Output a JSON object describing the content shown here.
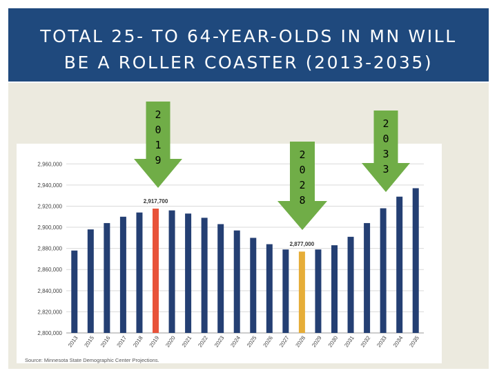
{
  "header": {
    "title_line1": "TOTAL 25- TO 64-YEAR-OLDS IN MN WILL",
    "title_line2": "BE A ROLLER COASTER (2013-2035)"
  },
  "colors": {
    "title_bg": "#1f497d",
    "panel_bg": "#eceadf",
    "bar_default": "#243f73",
    "bar_2019": "#e8533a",
    "bar_2028": "#e6ad38",
    "callout_green": "#70ad47"
  },
  "callouts": [
    {
      "year": "2019",
      "digits": [
        "2",
        "0",
        "1",
        "9"
      ]
    },
    {
      "year": "2028",
      "digits": [
        "2",
        "0",
        "2",
        "8"
      ]
    },
    {
      "year": "2033",
      "digits": [
        "2",
        "0",
        "3",
        "3"
      ]
    }
  ],
  "chart_data": {
    "type": "bar",
    "categories": [
      "2013",
      "2015",
      "2016",
      "2017",
      "2018",
      "2019",
      "2020",
      "2021",
      "2022",
      "2023",
      "2024",
      "2025",
      "2026",
      "2027",
      "2028",
      "2029",
      "2030",
      "2031",
      "2032",
      "2033",
      "2034",
      "2035"
    ],
    "values": [
      2878000,
      2898000,
      2904000,
      2910000,
      2914000,
      2917700,
      2916000,
      2913000,
      2909000,
      2903000,
      2897000,
      2890000,
      2884000,
      2879000,
      2877000,
      2879000,
      2883000,
      2891000,
      2904000,
      2918000,
      2929000,
      2937000
    ],
    "highlight": {
      "2019": "bar_2019",
      "2028": "bar_2028"
    },
    "data_labels": [
      {
        "category": "2019",
        "text": "2,917,700"
      },
      {
        "category": "2028",
        "text": "2,877,000"
      }
    ],
    "yticks": [
      "2,800,000",
      "2,820,000",
      "2,840,000",
      "2,860,000",
      "2,880,000",
      "2,900,000",
      "2,920,000",
      "2,940,000",
      "2,960,000"
    ],
    "ylim": [
      2800000,
      2970000
    ],
    "grid": true,
    "source": "Source: Minnesota State Demographic Center Projections."
  }
}
